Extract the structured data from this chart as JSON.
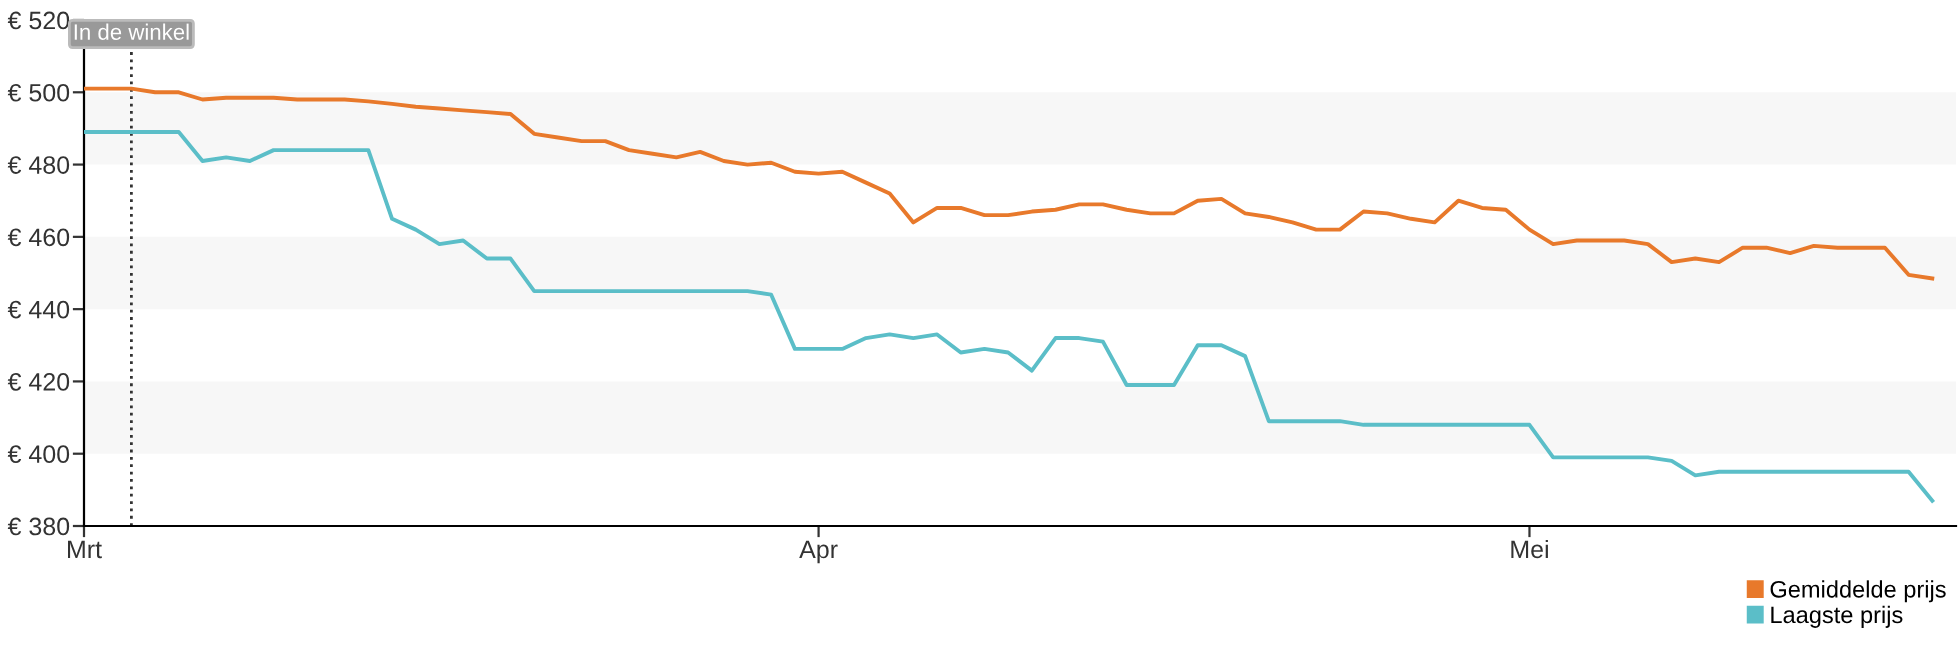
{
  "chart_data": {
    "type": "line",
    "categories": [
      "Mrt",
      null,
      null,
      null,
      null,
      null,
      null,
      null,
      null,
      null,
      null,
      null,
      null,
      null,
      null,
      null,
      null,
      null,
      null,
      null,
      null,
      null,
      null,
      null,
      null,
      null,
      null,
      null,
      null,
      null,
      null,
      "Apr",
      null,
      null,
      null,
      null,
      null,
      null,
      null,
      null,
      null,
      null,
      null,
      null,
      null,
      null,
      null,
      null,
      null,
      null,
      null,
      null,
      null,
      null,
      null,
      null,
      null,
      null,
      null,
      null,
      null,
      "Mei",
      null,
      null,
      null,
      null,
      null,
      null,
      null,
      null,
      null,
      null,
      null,
      null,
      null,
      null,
      null,
      null,
      null
    ],
    "ylim": [
      380,
      520
    ],
    "yticks": [
      {
        "value": 380,
        "label": "€ 380"
      },
      {
        "value": 400,
        "label": "€ 400"
      },
      {
        "value": 420,
        "label": "€ 420"
      },
      {
        "value": 440,
        "label": "€ 440"
      },
      {
        "value": 460,
        "label": "€ 460"
      },
      {
        "value": 480,
        "label": "€ 480"
      },
      {
        "value": 500,
        "label": "€ 500"
      },
      {
        "value": 520,
        "label": "€ 520"
      }
    ],
    "bands": [
      {
        "axis": "y",
        "from": 400,
        "to": 420,
        "color": "#f7f7f7"
      },
      {
        "axis": "y",
        "from": 440,
        "to": 460,
        "color": "#f7f7f7"
      },
      {
        "axis": "y",
        "from": 480,
        "to": 500,
        "color": "#f7f7f7"
      }
    ],
    "annotations": [
      "In de winkel"
    ],
    "legend": "bottom right",
    "marker": "none",
    "line_style": "solid",
    "series": [
      {
        "name": "Gemiddelde prijs",
        "color": "#e8792b",
        "values": [
          501,
          501,
          501,
          500,
          500,
          498,
          498.5,
          498.5,
          498.5,
          498,
          498,
          498,
          497.5,
          496.8,
          496,
          495.5,
          495,
          494.5,
          494,
          488.5,
          487.5,
          486.5,
          486.5,
          484,
          483,
          482,
          483.5,
          481,
          480,
          480.5,
          478,
          477.5,
          478,
          475,
          472,
          464,
          468,
          468,
          466,
          466,
          467,
          467.5,
          469,
          469,
          467.5,
          466.5,
          466.5,
          470,
          470.5,
          466.5,
          465.5,
          464,
          462,
          462,
          467,
          466.5,
          465,
          464,
          470,
          468,
          467.5,
          462,
          458,
          459,
          459,
          459,
          458,
          453,
          454,
          453,
          457,
          457,
          455.5,
          457.5,
          457,
          457,
          457,
          449.5,
          448.5
        ]
      },
      {
        "name": "Laagste prijs",
        "color": "#5bbec8",
        "values": [
          489,
          489,
          489,
          489,
          489,
          481,
          482,
          481,
          484,
          484,
          484,
          484,
          484,
          465,
          462,
          458,
          459,
          454,
          454,
          445,
          445,
          445,
          445,
          445,
          445,
          445,
          445,
          445,
          445,
          444,
          429,
          429,
          429,
          432,
          433,
          432,
          433,
          428,
          429,
          428,
          423,
          432,
          432,
          431,
          419,
          419,
          419,
          430,
          430,
          427,
          409,
          409,
          409,
          409,
          408,
          408,
          408,
          408,
          408,
          408,
          408,
          408,
          399,
          399,
          399,
          399,
          399,
          398,
          394,
          395,
          395,
          395,
          395,
          395,
          395,
          395,
          395,
          395,
          387
        ]
      }
    ]
  }
}
